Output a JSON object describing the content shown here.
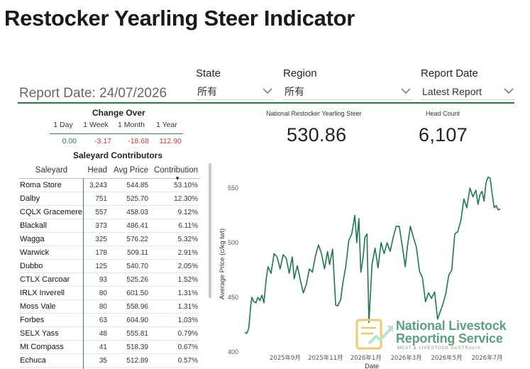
{
  "title": "Restocker Yearling Steer Indicator",
  "report_date_label": "Report Date: 24/07/2026",
  "filters": {
    "state": {
      "label": "State",
      "value": "所有"
    },
    "region": {
      "label": "Region",
      "value": "所有"
    },
    "report_date": {
      "label": "Report Date",
      "value": "Latest Report"
    }
  },
  "change_over": {
    "title": "Change Over",
    "periods": [
      "1 Day",
      "1 Week",
      "1 Month",
      "1 Year"
    ],
    "values": [
      "0.00",
      "-3.17",
      "-18.68",
      "112.90"
    ]
  },
  "kpis": {
    "price_label": "National Restocker Yearling Steer",
    "price_value": "530.86",
    "head_label": "Head Count",
    "head_value": "6,107"
  },
  "saleyards": {
    "title": "Saleyard Contributors",
    "columns": [
      "Saleyard",
      "Head",
      "Avg Price",
      "Contribution"
    ],
    "rows": [
      [
        "Roma Store",
        "3,243",
        "544.85",
        "53.10%"
      ],
      [
        "Dalby",
        "751",
        "525.70",
        "12.30%"
      ],
      [
        "CQLX Gracemere",
        "557",
        "458.03",
        "9.12%"
      ],
      [
        "Blackall",
        "373",
        "486.41",
        "6.11%"
      ],
      [
        "Wagga",
        "325",
        "576.22",
        "5.32%"
      ],
      [
        "Warwick",
        "178",
        "509.11",
        "2.91%"
      ],
      [
        "Dubbo",
        "125",
        "540.70",
        "2.05%"
      ],
      [
        "CTLX Carcoar",
        "93",
        "525.26",
        "1.52%"
      ],
      [
        "IRLX Inverell",
        "80",
        "601.50",
        "1.31%"
      ],
      [
        "Moss Vale",
        "80",
        "558.96",
        "1.31%"
      ],
      [
        "Forbes",
        "63",
        "604.90",
        "1.03%"
      ],
      [
        "SELX Yass",
        "48",
        "555.81",
        "0.79%"
      ],
      [
        "Mt Compass",
        "41",
        "518.39",
        "0.67%"
      ],
      [
        "Echuca",
        "35",
        "512.89",
        "0.57%"
      ]
    ]
  },
  "logo": {
    "line1": "National Livestock",
    "line2": "Reporting Service",
    "tagline": "MEAT & LIVESTOCK AUSTRALIA"
  },
  "colors": {
    "accent": "#1f7a4c",
    "up": "#1f8a4a",
    "down": "#d23a3a",
    "line": "#1a7a4a"
  },
  "chart_data": {
    "type": "line",
    "title": "",
    "xlabel": "Date",
    "ylabel": "Average Price (c/kg lwt)",
    "ylim": [
      400,
      560
    ],
    "yticks": [
      400,
      450,
      500,
      550
    ],
    "xticks": [
      "2025年9月",
      "2025年11月",
      "2026年1月",
      "2026年3月",
      "2026年5月",
      "2026年7月"
    ],
    "xtick_months": [
      2,
      4,
      6,
      8,
      10,
      12
    ],
    "x_months": [
      0.0,
      0.1,
      0.2,
      0.3,
      0.35,
      0.45,
      0.55,
      0.65,
      0.75,
      0.85,
      0.95,
      1.05,
      1.15,
      1.3,
      1.45,
      1.6,
      1.75,
      1.9,
      2.05,
      2.2,
      2.35,
      2.45,
      2.6,
      2.75,
      2.9,
      3.05,
      3.2,
      3.35,
      3.5,
      3.65,
      3.8,
      3.95,
      4.1,
      4.2,
      4.35,
      4.5,
      4.6,
      4.75,
      4.85,
      5.0,
      5.15,
      5.3,
      5.45,
      5.55,
      5.65,
      5.75,
      5.85,
      5.95,
      6.05,
      6.15,
      6.3,
      6.45,
      6.6,
      6.75,
      6.9,
      7.05,
      7.2,
      7.35,
      7.5,
      7.65,
      7.8,
      7.95,
      8.05,
      8.2,
      8.35,
      8.5,
      8.65,
      8.8,
      8.95,
      9.1,
      9.25,
      9.4,
      9.55,
      9.7,
      9.8,
      9.95,
      10.1,
      10.25,
      10.4,
      10.55,
      10.7,
      10.85,
      11.0,
      11.15,
      11.3,
      11.45,
      11.55,
      11.65,
      11.75,
      11.85,
      11.95,
      12.05,
      12.15,
      12.25,
      12.35,
      12.45,
      12.55,
      12.65
    ],
    "values": [
      418,
      417,
      422,
      443,
      450,
      446,
      445,
      450,
      447,
      452,
      445,
      465,
      478,
      472,
      490,
      487,
      476,
      489,
      486,
      472,
      487,
      467,
      479,
      466,
      454,
      462,
      476,
      473,
      488,
      498,
      490,
      476,
      492,
      480,
      494,
      443,
      442,
      448,
      462,
      478,
      502,
      508,
      525,
      500,
      522,
      473,
      485,
      505,
      508,
      427,
      480,
      495,
      477,
      500,
      490,
      500,
      492,
      505,
      515,
      515,
      497,
      478,
      496,
      515,
      505,
      496,
      474,
      468,
      446,
      454,
      449,
      455,
      430,
      438,
      443,
      453,
      470,
      475,
      508,
      510,
      520,
      540,
      532,
      550,
      542,
      548,
      535,
      544,
      547,
      538,
      555,
      560,
      559,
      545,
      532,
      534,
      530,
      531
    ]
  }
}
